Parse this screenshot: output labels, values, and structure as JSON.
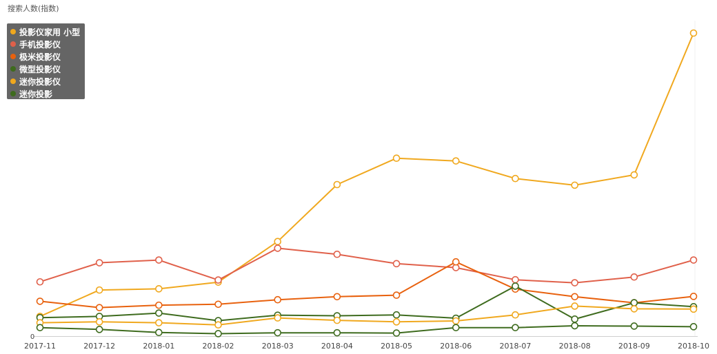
{
  "chart_data": {
    "type": "line",
    "ylabel": "搜索人数(指数)",
    "y_tick_labels": [
      "0"
    ],
    "ylim": [
      0,
      100
    ],
    "x_tick_labels": [
      "2017-11",
      "2017-12",
      "2018-01",
      "2018-02",
      "2018-03",
      "2018-04",
      "2018-05",
      "2018-06",
      "2018-07",
      "2018-08",
      "2018-09",
      "2018-10"
    ],
    "categories": [
      "2017-11",
      "2017-12",
      "2018-01",
      "2018-02",
      "2018-03",
      "2018-04",
      "2018-05",
      "2018-06",
      "2018-07",
      "2018-08",
      "2018-09",
      "2018-10"
    ],
    "legend_position": "top-left",
    "grid": false,
    "series": [
      {
        "name": "投影仪家用 小型",
        "color": "#F0A81E",
        "values": [
          6.5,
          15.2,
          15.6,
          17.8,
          31.2,
          50.0,
          58.7,
          57.8,
          52.0,
          49.8,
          53.2,
          100.0
        ]
      },
      {
        "name": "手机投影仪",
        "color": "#E0604A",
        "values": [
          17.9,
          24.2,
          25.1,
          18.5,
          29.0,
          27.0,
          23.9,
          22.6,
          18.6,
          17.6,
          19.5,
          25.1
        ]
      },
      {
        "name": "极米投影仪",
        "color": "#E8610E",
        "values": [
          11.5,
          9.4,
          10.2,
          10.5,
          12.0,
          13.0,
          13.5,
          24.5,
          15.5,
          13.0,
          11.0,
          13.1
        ]
      },
      {
        "name": "微型投影仪",
        "color": "#3E6B1E",
        "values": [
          6.1,
          6.5,
          7.6,
          5.1,
          6.9,
          6.7,
          7.0,
          5.9,
          16.5,
          5.6,
          11.0,
          9.7
        ]
      },
      {
        "name": "迷你投影仪",
        "color": "#F0A81E",
        "values": [
          4.4,
          4.7,
          4.4,
          3.7,
          6.0,
          5.2,
          4.7,
          5.0,
          7.0,
          9.9,
          9.0,
          8.9
        ]
      },
      {
        "name": "迷你投影",
        "color": "#3E6B1E",
        "values": [
          2.8,
          2.2,
          1.2,
          0.8,
          1.1,
          1.1,
          1.0,
          2.8,
          2.8,
          3.4,
          3.3,
          3.1
        ]
      }
    ]
  }
}
